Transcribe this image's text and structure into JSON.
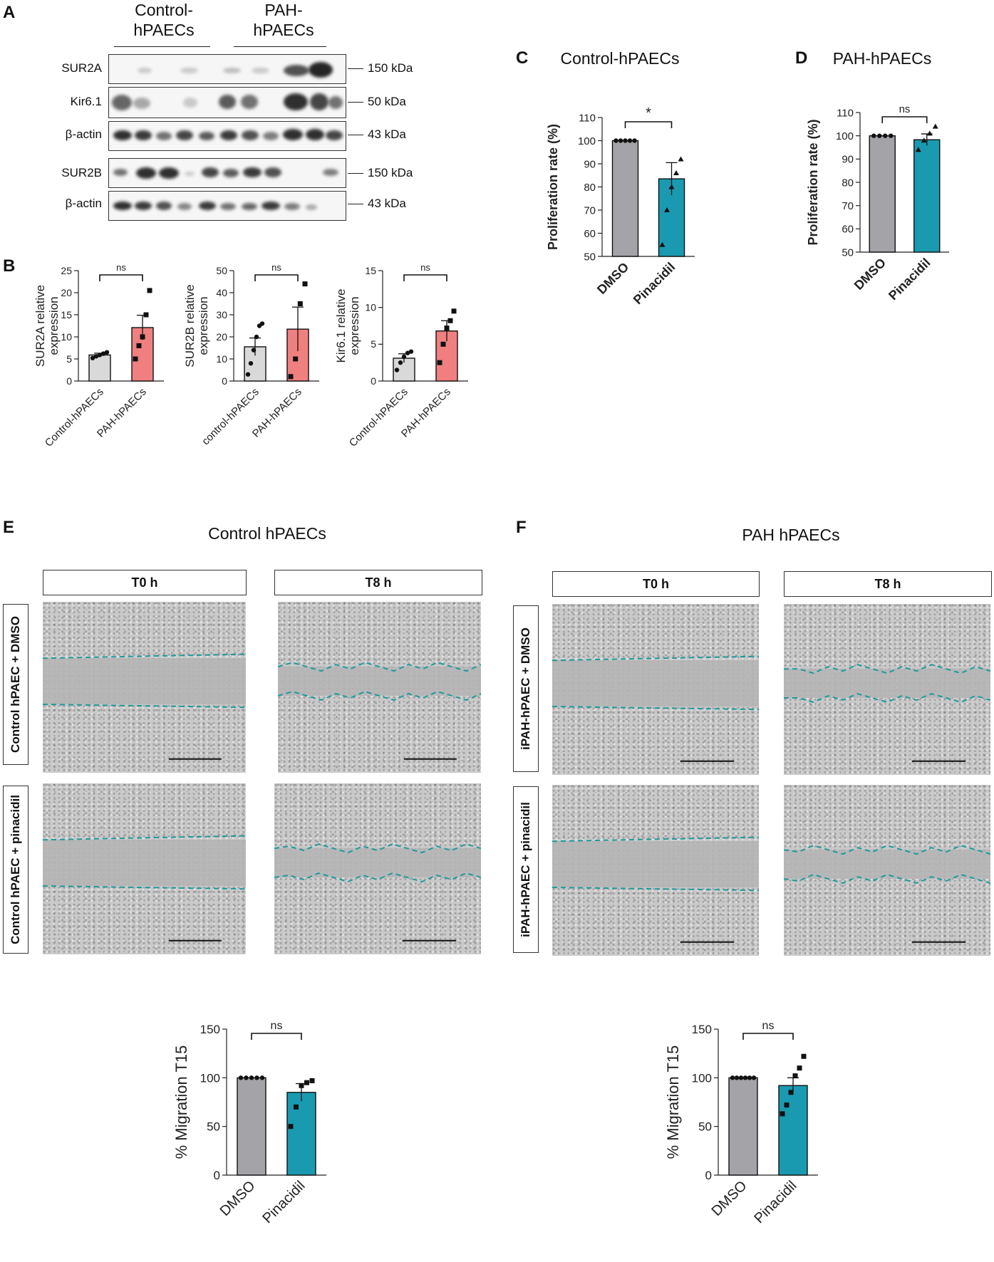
{
  "panels": {
    "a": "A",
    "b": "B",
    "c": "C",
    "d": "D",
    "e": "E",
    "f": "F"
  },
  "western": {
    "group_control": "Control-\nhPAECs",
    "group_control_l1": "Control-",
    "group_control_l2": "hPAECs",
    "group_pah_l1": "PAH-",
    "group_pah_l2": "hPAECs",
    "rows": [
      {
        "label": "SUR2A",
        "kda": "150 kDa"
      },
      {
        "label": "Kir6.1",
        "kda": "50 kDa"
      },
      {
        "label": "β-actin",
        "kda": "43 kDa"
      },
      {
        "label": "SUR2B",
        "kda": "150 kDa"
      },
      {
        "label": "β-actin",
        "kda": "43 kDa"
      }
    ]
  },
  "panel_c_title": "Control-hPAECs",
  "panel_d_title": "PAH-hPAECs",
  "panel_e_title": "Control hPAECs",
  "panel_f_title": "PAH hPAECs",
  "migration_e": {
    "col_t0": "T0 h",
    "col_t8": "T8 h",
    "row_dmso": "Control hPAEC + DMSO",
    "row_pina": "Control hPAEC + pinacidil"
  },
  "migration_f": {
    "col_t0": "T0 h",
    "col_t8": "T8 h",
    "row_dmso": "iPAH-hPAEC + DMSO",
    "row_pina": "iPAH-hPAEC + pinacidil"
  },
  "colors": {
    "grey_bar": "#a3a3a8",
    "teal_bar": "#1a9ab0",
    "light_grey_bar": "#d9d9d9",
    "pink_bar": "#f08080",
    "dash": "#1e9a9a"
  },
  "chart_data": [
    {
      "id": "B1",
      "type": "bar",
      "categories": [
        "Control-hPAECs",
        "PAH-hPAECs"
      ],
      "values": [
        5.9,
        12.1
      ],
      "errors": [
        0.4,
        2.8
      ],
      "points": [
        [
          5.2,
          5.6,
          5.9,
          6.2,
          6.5
        ],
        [
          5.0,
          8.0,
          10.0,
          15.0,
          20.5
        ]
      ],
      "ylabel_l1": "SUR2A relative",
      "ylabel_l2": "expression",
      "ylim": [
        0,
        25
      ],
      "ticks": [
        "0",
        "5",
        "10",
        "15",
        "20",
        "25"
      ],
      "annotation": "ns"
    },
    {
      "id": "B2",
      "type": "bar",
      "categories": [
        "control-hPAECs",
        "PAH-hPAECs"
      ],
      "values": [
        15.5,
        23.5
      ],
      "errors": [
        4.0,
        10.0
      ],
      "points": [
        [
          3,
          8,
          14,
          20,
          25,
          26
        ],
        [
          2,
          10,
          35,
          44
        ]
      ],
      "ylabel_l1": "SUR2B relative",
      "ylabel_l2": "expression",
      "ylim": [
        0,
        50
      ],
      "ticks": [
        "0",
        "10",
        "20",
        "30",
        "40",
        "50"
      ],
      "annotation": "ns"
    },
    {
      "id": "B3",
      "type": "bar",
      "categories": [
        "Control-hPAECs",
        "PAH-hPAECs"
      ],
      "values": [
        3.1,
        6.8
      ],
      "errors": [
        0.6,
        1.4
      ],
      "points": [
        [
          1.5,
          2.5,
          3.3,
          3.8,
          4.0
        ],
        [
          2.5,
          5.0,
          7.2,
          8.2,
          9.5
        ]
      ],
      "ylabel_l1": "Kir6.1 relative",
      "ylabel_l2": "expression",
      "ylim": [
        0,
        15
      ],
      "ticks": [
        "0",
        "5",
        "10",
        "15"
      ],
      "annotation": "ns"
    },
    {
      "id": "C",
      "type": "bar",
      "categories": [
        "DMSO",
        "Pinacidil"
      ],
      "values": [
        100,
        83.5
      ],
      "errors": [
        0,
        7
      ],
      "points": [
        [
          100,
          100,
          100,
          100,
          100
        ],
        [
          55,
          70,
          80,
          86,
          92
        ]
      ],
      "ylabel": "Proliferation rate (%)",
      "ylim": [
        50,
        110
      ],
      "ticks": [
        "50",
        "60",
        "70",
        "80",
        "90",
        "100",
        "110"
      ],
      "annotation": "*"
    },
    {
      "id": "D",
      "type": "bar",
      "categories": [
        "DMSO",
        "Pinacidil"
      ],
      "values": [
        100,
        98.3
      ],
      "errors": [
        0,
        2.5
      ],
      "points": [
        [
          100,
          100,
          100,
          100
        ],
        [
          94,
          98,
          101,
          104
        ]
      ],
      "ylabel": "Proliferation rate (%)",
      "ylim": [
        50,
        110
      ],
      "ticks": [
        "50",
        "60",
        "70",
        "80",
        "90",
        "100",
        "110"
      ],
      "annotation": "ns"
    },
    {
      "id": "E",
      "type": "bar",
      "categories": [
        "DMSO",
        "Pinacidil"
      ],
      "values": [
        100,
        85
      ],
      "errors": [
        0,
        9
      ],
      "points": [
        [
          100,
          100,
          100,
          100,
          100
        ],
        [
          50,
          70,
          92,
          95,
          97
        ]
      ],
      "ylabel": "% Migration T15",
      "ylim": [
        0,
        150
      ],
      "ticks": [
        "0",
        "50",
        "100",
        "150"
      ],
      "annotation": "ns"
    },
    {
      "id": "F",
      "type": "bar",
      "categories": [
        "DMSO",
        "Pinacidil"
      ],
      "values": [
        100,
        92
      ],
      "errors": [
        0,
        8
      ],
      "points": [
        [
          100,
          100,
          100,
          100,
          100,
          100
        ],
        [
          63,
          72,
          85,
          102,
          110,
          122
        ]
      ],
      "ylabel": "% Migration T15",
      "ylim": [
        0,
        150
      ],
      "ticks": [
        "0",
        "50",
        "100",
        "150"
      ],
      "annotation": "ns"
    }
  ]
}
